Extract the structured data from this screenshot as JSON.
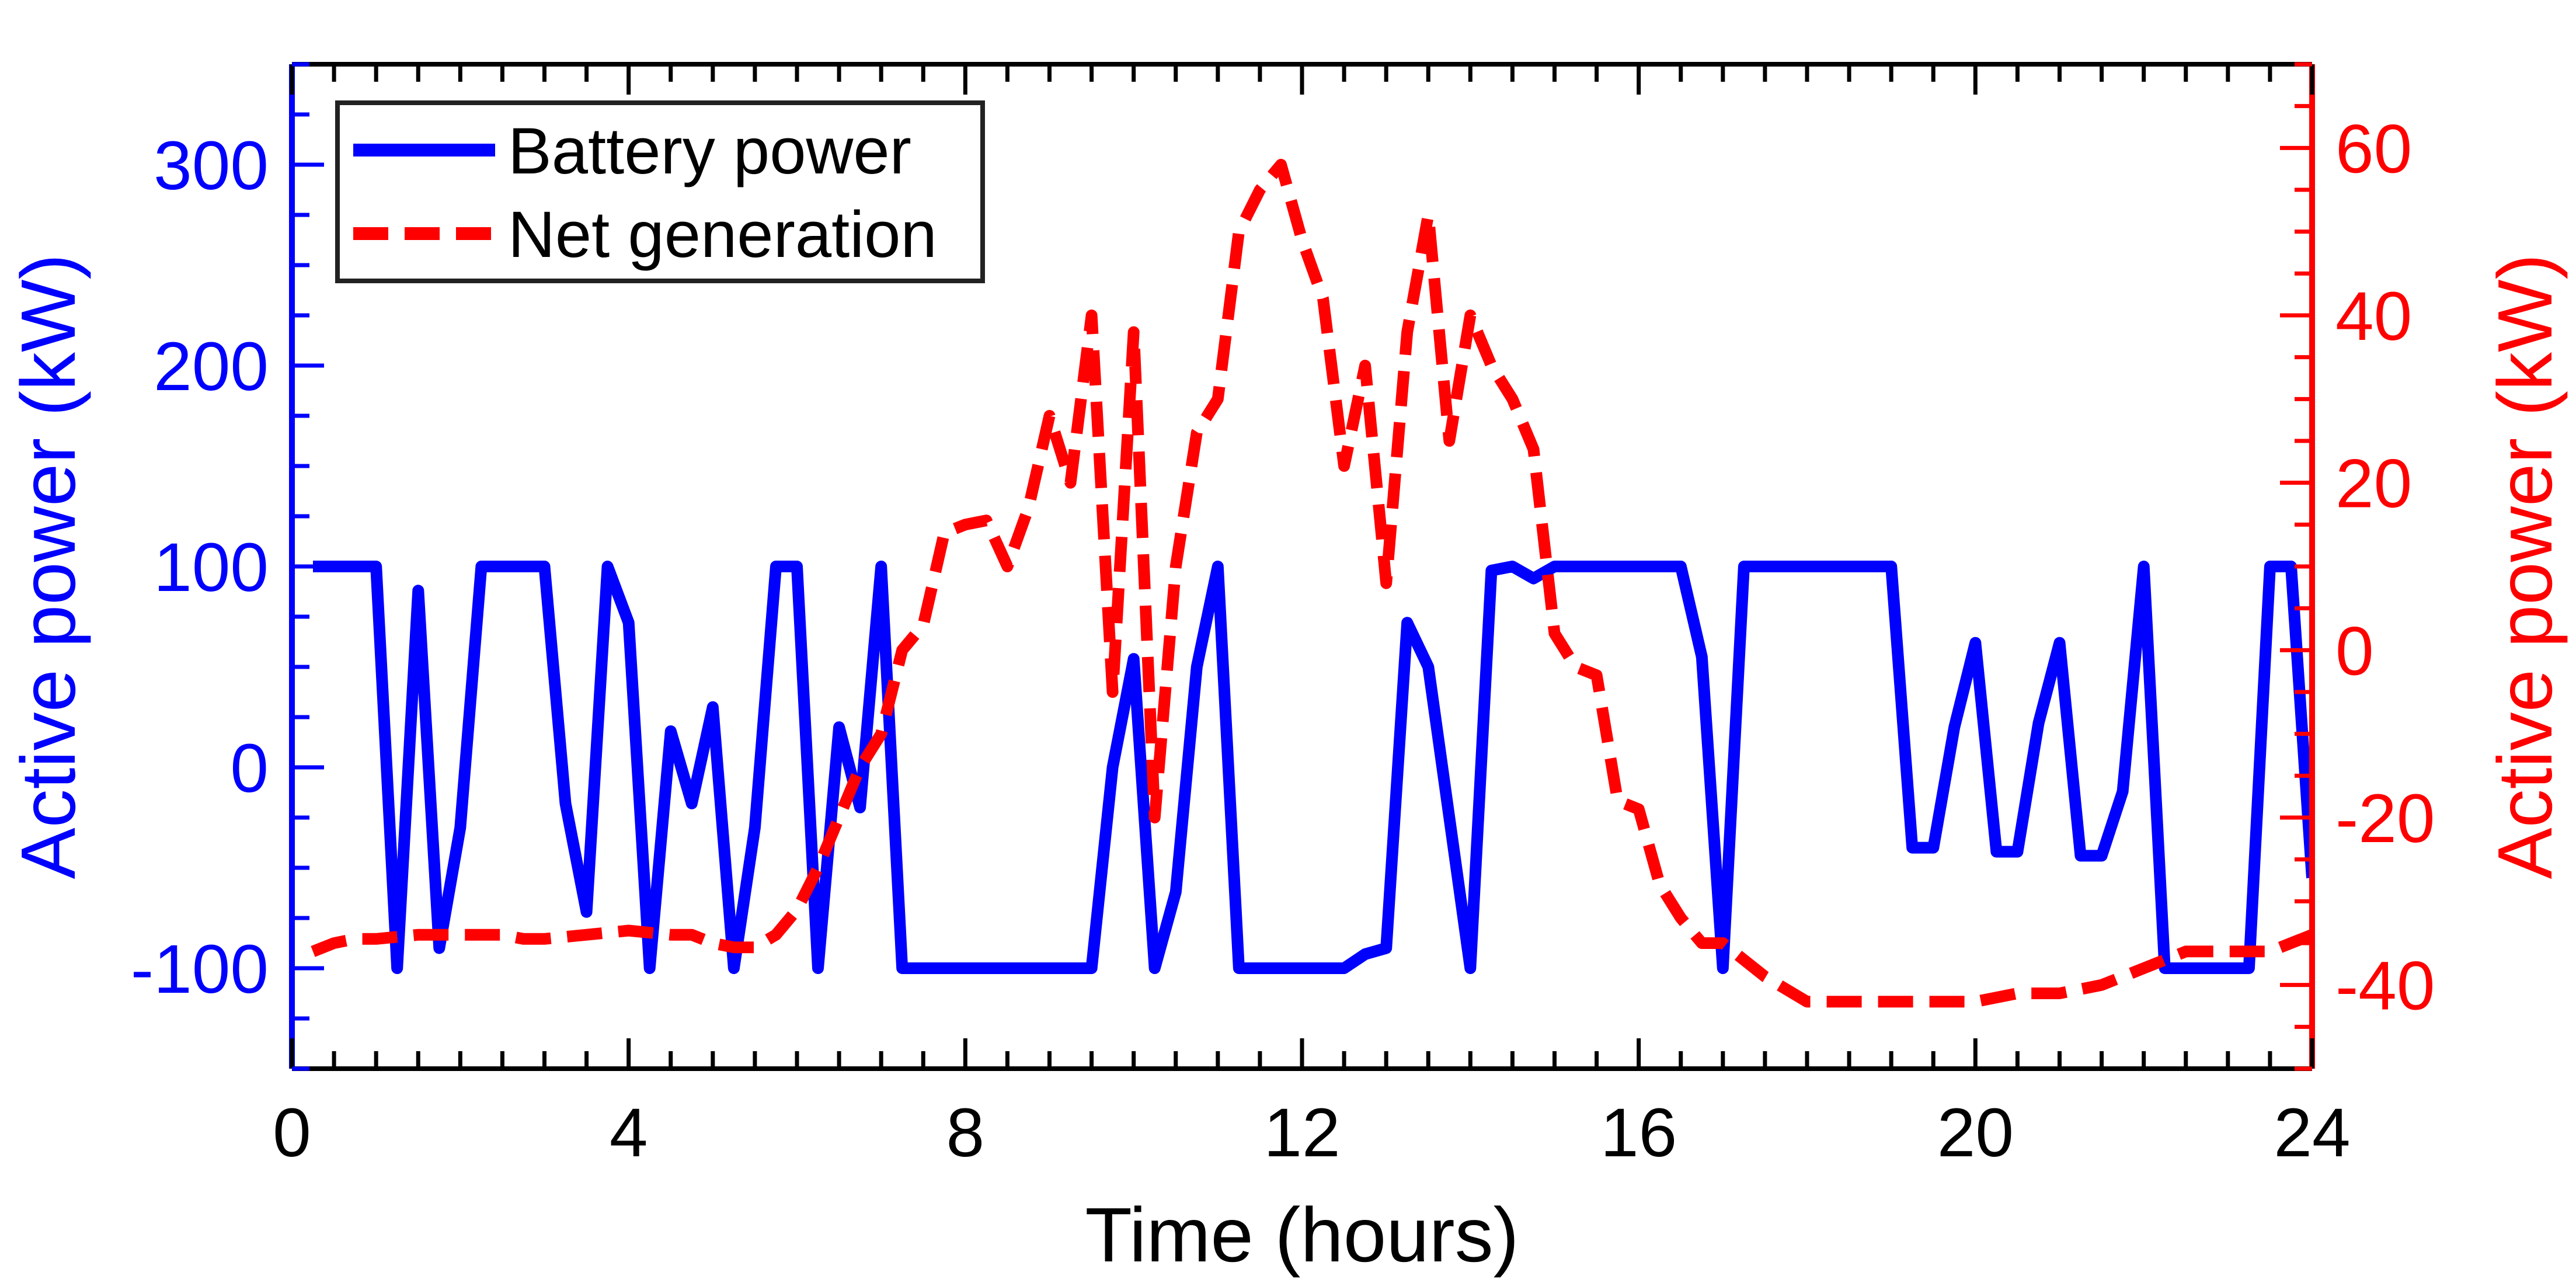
{
  "chart_data": {
    "type": "line",
    "title": "",
    "xlabel": "Time (hours)",
    "ylabel_left": "Active power (kW)",
    "ylabel_right": "Active power (kW)",
    "xlim": [
      0,
      24
    ],
    "ylim_left": [
      -150,
      350
    ],
    "ylim_right": [
      -50,
      70
    ],
    "x_ticks": [
      0,
      4,
      8,
      12,
      16,
      20,
      24
    ],
    "x_tick_labels": [
      "0",
      "4",
      "8",
      "12",
      "16",
      "20",
      "24"
    ],
    "y_left_ticks": [
      -100,
      0,
      100,
      200,
      300
    ],
    "y_left_tick_labels": [
      "-100",
      "0",
      "100",
      "200",
      "300"
    ],
    "y_right_ticks": [
      -40,
      -20,
      0,
      20,
      40,
      60
    ],
    "y_right_tick_labels": [
      "-40",
      "-20",
      "0",
      "20",
      "40",
      "60"
    ],
    "grid": false,
    "legend": {
      "position": "top-left",
      "entries": [
        "Battery power",
        "Net generation"
      ]
    },
    "colors": {
      "left_axis": "#0000ff",
      "right_axis": "#ff0000",
      "battery": "#0000ff",
      "net": "#ff0000"
    },
    "series": [
      {
        "name": "Battery power",
        "axis": "left",
        "style": "solid",
        "x": [
          0.25,
          1.0,
          1.25,
          1.5,
          1.75,
          2.0,
          2.25,
          2.5,
          3.0,
          3.25,
          3.5,
          3.75,
          4.0,
          4.25,
          4.5,
          4.75,
          5.0,
          5.25,
          5.5,
          5.75,
          6.0,
          6.25,
          6.5,
          6.75,
          7.0,
          7.25,
          7.5,
          9.5,
          9.75,
          10.0,
          10.25,
          10.5,
          10.75,
          11.0,
          11.25,
          12.5,
          12.75,
          13.0,
          13.25,
          13.5,
          13.75,
          14.0,
          14.25,
          14.5,
          14.75,
          15.0,
          15.5,
          16.5,
          16.75,
          17.0,
          17.25,
          19.0,
          19.25,
          19.5,
          19.75,
          20.0,
          20.25,
          20.5,
          20.75,
          21.0,
          21.25,
          21.5,
          21.75,
          22.0,
          22.25,
          23.25,
          23.5,
          23.75,
          24.0
        ],
        "values": [
          100,
          100,
          -100,
          88,
          -90,
          -30,
          100,
          100,
          100,
          -18,
          -72,
          100,
          72,
          -100,
          18,
          -18,
          30,
          -100,
          -30,
          100,
          100,
          -100,
          20,
          -20,
          100,
          -100,
          -100,
          -100,
          0,
          54,
          -100,
          -62,
          50,
          100,
          -100,
          -100,
          -93,
          -90,
          72,
          50,
          -25,
          -100,
          98,
          100,
          94,
          100,
          100,
          100,
          55,
          -100,
          100,
          100,
          -40,
          -40,
          20,
          62,
          -42,
          -42,
          22,
          62,
          -44,
          -44,
          -12,
          100,
          -100,
          -100,
          100,
          100,
          -55
        ]
      },
      {
        "name": "Net generation",
        "axis": "right",
        "style": "dashed",
        "x": [
          0.25,
          0.5,
          0.75,
          1.0,
          1.5,
          2.0,
          2.5,
          2.75,
          3.0,
          3.5,
          4.0,
          4.5,
          4.75,
          5.0,
          5.25,
          5.5,
          5.75,
          6.0,
          6.25,
          6.5,
          6.75,
          7.0,
          7.25,
          7.5,
          7.75,
          8.0,
          8.25,
          8.5,
          8.75,
          9.0,
          9.25,
          9.5,
          9.75,
          10.0,
          10.25,
          10.5,
          10.75,
          11.0,
          11.25,
          11.5,
          11.75,
          12.0,
          12.25,
          12.5,
          12.75,
          13.0,
          13.25,
          13.5,
          13.75,
          14.0,
          14.25,
          14.5,
          14.75,
          15.0,
          15.25,
          15.5,
          15.75,
          16.0,
          16.25,
          16.5,
          16.75,
          17.0,
          17.5,
          18.0,
          18.5,
          19.0,
          19.5,
          20.0,
          20.5,
          21.0,
          21.5,
          22.0,
          22.5,
          23.0,
          23.5,
          24.0
        ],
        "values": [
          -36,
          -35,
          -34.5,
          -34.5,
          -34,
          -34,
          -34,
          -34.5,
          -34.5,
          -34,
          -33.5,
          -34,
          -34,
          -35,
          -35.5,
          -35.5,
          -34,
          -31,
          -26,
          -20,
          -14,
          -10,
          0,
          3,
          14,
          15,
          15.5,
          10,
          17,
          28,
          20,
          40,
          -5,
          38,
          -20,
          10,
          26,
          30,
          50,
          55,
          58,
          49,
          42,
          22,
          34,
          8,
          38,
          52,
          25,
          40,
          34,
          30,
          24,
          2,
          -2,
          -3,
          -18,
          -19,
          -28,
          -32,
          -35,
          -35,
          -39,
          -42,
          -42,
          -42,
          -42,
          -42,
          -41,
          -41,
          -40,
          -38,
          -36,
          -36,
          -36,
          -34
        ]
      }
    ]
  }
}
